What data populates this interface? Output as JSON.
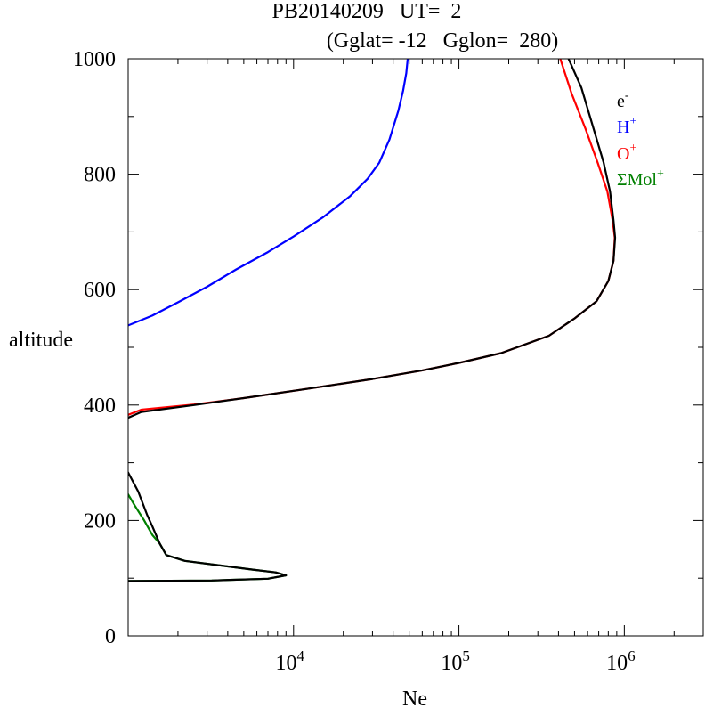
{
  "chart_data": {
    "type": "line",
    "title_line1": "PB20140209   UT=  2",
    "title_line2": "(Gglat= -12   Gglon=  280)",
    "xlabel": "Ne",
    "ylabel": "altitude",
    "xscale": "log",
    "xlim": [
      1000,
      3000000
    ],
    "ylim": [
      0,
      1000
    ],
    "x_ticks": [
      {
        "value": 10000,
        "base": "10",
        "exp": "4"
      },
      {
        "value": 100000,
        "base": "10",
        "exp": "5"
      },
      {
        "value": 1000000,
        "base": "10",
        "exp": "6"
      }
    ],
    "y_ticks": [
      {
        "value": 0,
        "label": "0"
      },
      {
        "value": 200,
        "label": "200"
      },
      {
        "value": 400,
        "label": "400"
      },
      {
        "value": 600,
        "label": "600"
      },
      {
        "value": 800,
        "label": "800"
      },
      {
        "value": 1000,
        "label": "1000"
      }
    ],
    "legend_position": "top-right",
    "series": [
      {
        "name": "e-",
        "legend_base": "e",
        "legend_sup": "-",
        "color": "#000000",
        "segments": [
          [
            [
              1000,
              95
            ],
            [
              3200,
              96
            ],
            [
              7000,
              99
            ],
            [
              9000,
              105
            ],
            [
              7800,
              110
            ],
            [
              5600,
              115
            ],
            [
              2200,
              130
            ],
            [
              1700,
              140
            ],
            [
              1550,
              160
            ],
            [
              1400,
              190
            ],
            [
              1300,
              210
            ],
            [
              1150,
              250
            ],
            [
              1000,
              283
            ]
          ],
          [
            [
              1000,
              378
            ],
            [
              1200,
              388
            ],
            [
              2500,
              400
            ],
            [
              5000,
              412
            ],
            [
              12000,
              428
            ],
            [
              30000,
              445
            ],
            [
              60000,
              460
            ],
            [
              100000,
              473
            ],
            [
              180000,
              490
            ],
            [
              350000,
              520
            ],
            [
              500000,
              550
            ],
            [
              680000,
              580
            ],
            [
              800000,
              615
            ],
            [
              860000,
              650
            ],
            [
              880000,
              690
            ],
            [
              860000,
              720
            ],
            [
              820000,
              770
            ],
            [
              750000,
              820
            ],
            [
              650000,
              880
            ],
            [
              550000,
              950
            ],
            [
              460000,
              1000
            ]
          ]
        ]
      },
      {
        "name": "H+",
        "legend_base": "H",
        "legend_sup": "+",
        "color": "#0000ff",
        "segments": [
          [
            [
              1000,
              538
            ],
            [
              1400,
              555
            ],
            [
              2000,
              578
            ],
            [
              3000,
              605
            ],
            [
              4500,
              635
            ],
            [
              7000,
              665
            ],
            [
              10000,
              692
            ],
            [
              15000,
              725
            ],
            [
              22000,
              762
            ],
            [
              28000,
              792
            ],
            [
              33000,
              820
            ],
            [
              38000,
              860
            ],
            [
              43000,
              910
            ],
            [
              46000,
              945
            ],
            [
              48000,
              975
            ],
            [
              49000,
              1000
            ]
          ]
        ]
      },
      {
        "name": "O+",
        "legend_base": "O",
        "legend_sup": "+",
        "color": "#ff0000",
        "segments": [
          [
            [
              1000,
              383
            ],
            [
              1200,
              392
            ],
            [
              2500,
              401
            ],
            [
              5000,
              412
            ],
            [
              12000,
              428
            ],
            [
              30000,
              445
            ],
            [
              60000,
              460
            ],
            [
              100000,
              473
            ],
            [
              180000,
              490
            ],
            [
              350000,
              520
            ],
            [
              500000,
              550
            ],
            [
              680000,
              580
            ],
            [
              800000,
              615
            ],
            [
              860000,
              650
            ],
            [
              875000,
              690
            ],
            [
              850000,
              720
            ],
            [
              790000,
              770
            ],
            [
              690000,
              820
            ],
            [
              580000,
              880
            ],
            [
              480000,
              940
            ],
            [
              410000,
              1000
            ]
          ]
        ]
      },
      {
        "name": "ΣMol+",
        "legend_base": "ΣMol",
        "legend_sup": "+",
        "color": "#008000",
        "segments": [
          [
            [
              1000,
              95
            ],
            [
              3200,
              96
            ],
            [
              7000,
              99
            ],
            [
              9000,
              105
            ],
            [
              7800,
              110
            ],
            [
              5600,
              115
            ],
            [
              2200,
              130
            ],
            [
              1700,
              140
            ],
            [
              1550,
              160
            ],
            [
              1400,
              175
            ],
            [
              1250,
              200
            ],
            [
              1100,
              225
            ],
            [
              1000,
              245
            ]
          ]
        ]
      }
    ]
  }
}
